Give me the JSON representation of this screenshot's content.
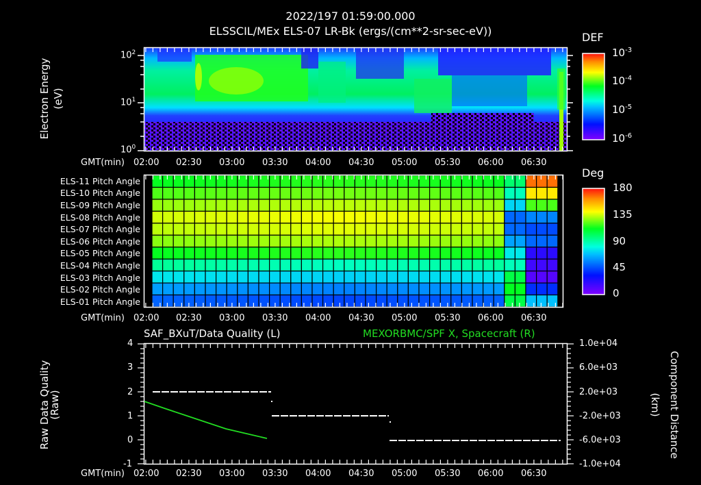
{
  "header": {
    "timestamp": "2022/197 01:59:00.000",
    "subtitle": "ELSSCIL/MEx ELS-07 LR-Bk  (ergs/(cm**2-sr-sec-eV))"
  },
  "time_axis": {
    "label": "GMT(min)",
    "ticks": [
      "02:00",
      "02:30",
      "03:00",
      "03:30",
      "04:00",
      "04:30",
      "05:00",
      "05:30",
      "06:00",
      "06:30"
    ]
  },
  "panel1": {
    "ylabel_line1": "Electron Energy",
    "ylabel_line2": "(eV)",
    "yticks": [
      {
        "base": "10",
        "exp": "2"
      },
      {
        "base": "10",
        "exp": "1"
      },
      {
        "base": "10",
        "exp": "0"
      }
    ],
    "colorbar": {
      "title": "DEF",
      "ticks": [
        {
          "base": "10",
          "exp": "-3"
        },
        {
          "base": "10",
          "exp": "-4"
        },
        {
          "base": "10",
          "exp": "-5"
        },
        {
          "base": "10",
          "exp": "-6"
        }
      ]
    }
  },
  "panel2": {
    "rows": [
      "ELS-11 Pitch Angle",
      "ELS-10 Pitch Angle",
      "ELS-09 Pitch Angle",
      "ELS-08 Pitch Angle",
      "ELS-07 Pitch Angle",
      "ELS-06 Pitch Angle",
      "ELS-05 Pitch Angle",
      "ELS-04 Pitch Angle",
      "ELS-03 Pitch Angle",
      "ELS-02 Pitch Angle",
      "ELS-01 Pitch Angle"
    ],
    "colorbar": {
      "title": "Deg",
      "ticks": [
        "180",
        "135",
        "90",
        "45",
        "0"
      ]
    }
  },
  "panel3": {
    "title_left": "SAF_BXuT/Data Quality (L)",
    "title_right": "MEXORBMC/SPF X, Spacecraft (R)",
    "ylabel_left_line1": "Raw Data Quality",
    "ylabel_left_line2": "(Raw)",
    "ylabel_right_line1": "Component Distance",
    "ylabel_right_line2": "(km)",
    "yticks_left": [
      "4",
      "3",
      "2",
      "1",
      "0",
      "-1"
    ],
    "yticks_right": [
      "1.0e+04",
      "6.0e+03",
      "2.0e+03",
      "-2.0e+03",
      "-6.0e+03",
      "-1.0e+04"
    ]
  },
  "colors": {
    "background": "#000000",
    "axes": "#ffffff",
    "right_series": "#22dd22"
  },
  "chart_data": [
    {
      "type": "heatmap",
      "title": "ELSSCIL/MEx ELS-07 LR-Bk (ergs/(cm**2-sr-sec-eV))",
      "xlabel": "GMT(min)",
      "ylabel": "Electron Energy (eV)",
      "x_ticks": [
        "02:00",
        "02:30",
        "03:00",
        "03:30",
        "04:00",
        "04:30",
        "05:00",
        "05:30",
        "06:00",
        "06:30"
      ],
      "y_scale": "log",
      "ylim": [
        1,
        150
      ],
      "colorbar": {
        "label": "DEF",
        "scale": "log",
        "range": [
          1e-06,
          0.001
        ]
      },
      "description": "Energy-time spectrogram; strongest flux (green-yellow ~1e-4) between ~8-100 eV from ~02:35 to ~04:10; intermittent structures after 04:10; green band ~8-40 eV 05:05-05:35; bright vertical enhancement near 06:48; low energies (<5 eV) mostly purple/black noise."
    },
    {
      "type": "heatmap",
      "title": "ELS Pitch Angle",
      "xlabel": "GMT(min)",
      "y_categories": [
        "ELS-11",
        "ELS-10",
        "ELS-09",
        "ELS-08",
        "ELS-07",
        "ELS-06",
        "ELS-05",
        "ELS-04",
        "ELS-03",
        "ELS-02",
        "ELS-01"
      ],
      "colorbar": {
        "label": "Deg",
        "range": [
          0,
          180
        ],
        "ticks": [
          0,
          45,
          90,
          135,
          180
        ]
      },
      "approx_values_deg_mid_interval": {
        "ELS-11": 100,
        "ELS-10": 110,
        "ELS-09": 120,
        "ELS-08": 128,
        "ELS-07": 125,
        "ELS-06": 118,
        "ELS-05": 100,
        "ELS-04": 85,
        "ELS-03": 70,
        "ELS-02": 55,
        "ELS-01": 45
      },
      "description": "Pitch angle smoothly graded from ~45 deg (ELS-01) to ~130 deg (ELS-08/09); after ~06:15 values shift, ELS-07/08 drop to ~40 deg; final column ELS-11 reaches ~170 deg."
    },
    {
      "type": "line",
      "title_left": "SAF_BXuT/Data Quality (L)",
      "title_right": "MEXORBMC/SPF X, Spacecraft (R)",
      "xlabel": "GMT(min)",
      "ylabel_left": "Raw Data Quality (Raw)",
      "ylabel_right": "Component Distance (km)",
      "ylim_left": [
        -1,
        4
      ],
      "ylim_right": [
        -10000,
        10000
      ],
      "series": [
        {
          "name": "Data Quality (L)",
          "style": "dashed-white",
          "segments": [
            {
              "x_start": "02:02",
              "x_end": "03:28",
              "y": 2
            },
            {
              "x_start": "03:29",
              "x_end": "04:45",
              "y": 1
            },
            {
              "x_start": "04:46",
              "x_end": "06:50",
              "y": 0
            }
          ]
        },
        {
          "name": "SPF X, Spacecraft (R)",
          "style": "solid-green",
          "points": [
            {
              "x": "02:00",
              "y_left_equiv": 1.6,
              "y_km": 400
            },
            {
              "x": "03:27",
              "y_left_equiv": 0.08,
              "y_km": -5700
            }
          ]
        }
      ]
    }
  ]
}
